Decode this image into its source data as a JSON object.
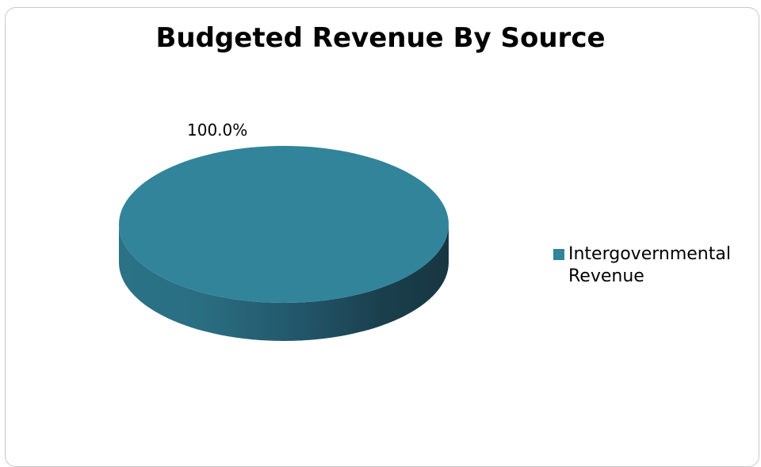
{
  "chart_data": {
    "type": "pie",
    "title": "Budgeted Revenue By Source",
    "slices": [
      {
        "label": "Intergovernmental Revenue",
        "value": 100.0,
        "display_label": "100.0%",
        "color": "#32849a"
      }
    ],
    "legend_position": "right",
    "three_d": true
  }
}
